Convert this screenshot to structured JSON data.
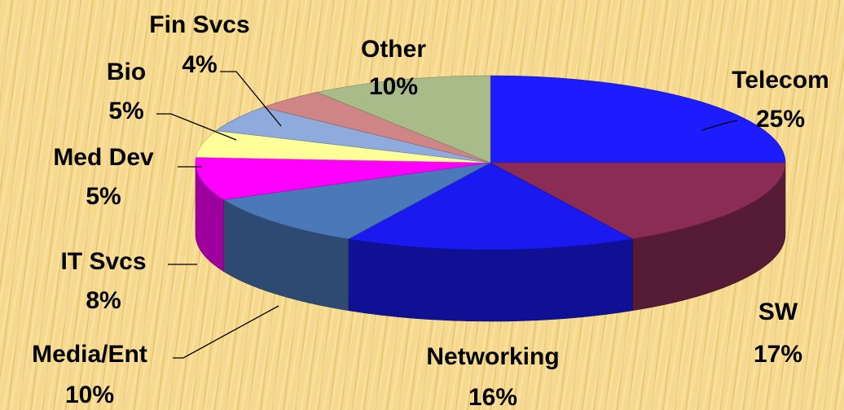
{
  "chart_data": {
    "type": "pie3d",
    "categories": [
      "Telecom",
      "SW",
      "Networking",
      "Media/Ent",
      "IT Svcs",
      "Med Dev",
      "Bio",
      "Fin Svcs",
      "Other"
    ],
    "values": [
      25,
      17,
      16,
      10,
      8,
      5,
      5,
      4,
      10
    ],
    "value_labels": [
      "25%",
      "17%",
      "16%",
      "10%",
      "8%",
      "5%",
      "5%",
      "4%",
      "10%"
    ],
    "colors": [
      "#1c1cff",
      "#8a2c55",
      "#1a1af0",
      "#4a78b8",
      "#ff00ff",
      "#ffff99",
      "#8faadc",
      "#cf8585",
      "#aabb8a"
    ]
  }
}
